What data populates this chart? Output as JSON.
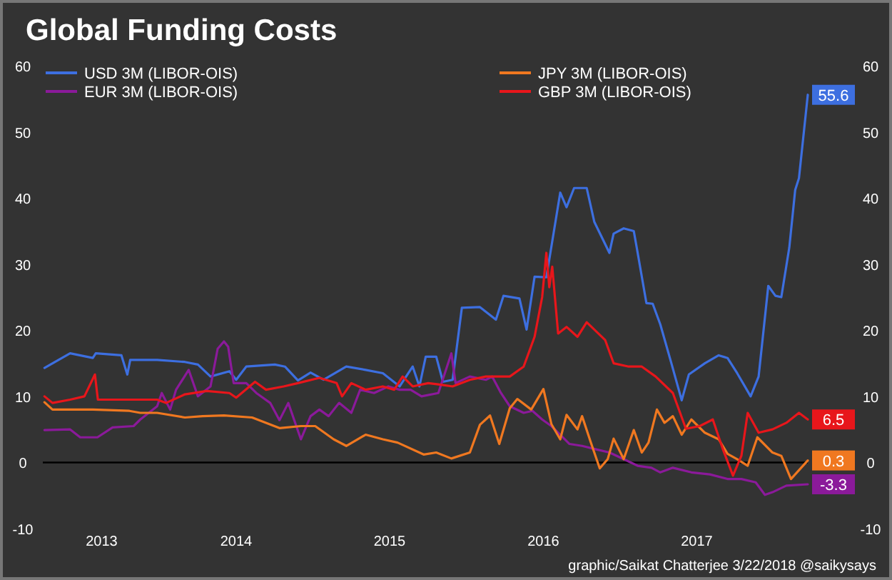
{
  "chart_data": {
    "type": "line",
    "title": "Global Funding Costs",
    "annotations": [
      "graphic/Saikat Chatterjee 3/22/2018 @saikysays"
    ],
    "xlim": [
      "2013-03-28",
      "2018-03-22"
    ],
    "xticks": [
      {
        "value": "2013-08-15",
        "label": "2013"
      },
      {
        "value": "2014-07-01",
        "label": "2014"
      },
      {
        "value": "2015-07-01",
        "label": "2015"
      },
      {
        "value": "2016-07-01",
        "label": "2016"
      },
      {
        "value": "2017-07-01",
        "label": "2017"
      }
    ],
    "ylim": [
      -10,
      60
    ],
    "yticks": [
      -10,
      0,
      10,
      20,
      30,
      40,
      50,
      60
    ],
    "y2lim": [
      -10,
      60
    ],
    "y2ticks": [
      -10,
      0,
      10,
      20,
      30,
      40,
      50,
      60
    ],
    "ref_lines": [
      {
        "axis": "y",
        "value": 0,
        "color": "#000000"
      }
    ],
    "legend": "top",
    "grid": false,
    "marker": "none",
    "line_style": "solid",
    "series": [
      {
        "name": "USD 3M (LIBOR-OIS)",
        "color": "#3d6fe0",
        "x": [
          "2013-04-01",
          "2013-06-01",
          "2013-07-25",
          "2013-08-01",
          "2013-10-01",
          "2013-10-15",
          "2013-10-22",
          "2013-12-25",
          "2014-03-01",
          "2014-04-01",
          "2014-05-01",
          "2014-06-15",
          "2014-07-01",
          "2014-07-25",
          "2014-10-01",
          "2014-10-25",
          "2014-11-25",
          "2014-12-25",
          "2015-01-25",
          "2015-03-20",
          "2015-05-05",
          "2015-06-15",
          "2015-07-25",
          "2015-08-25",
          "2015-09-10",
          "2015-09-25",
          "2015-10-20",
          "2015-11-05",
          "2015-11-28",
          "2015-12-20",
          "2016-02-01",
          "2016-03-10",
          "2016-03-28",
          "2016-05-05",
          "2016-05-22",
          "2016-06-10",
          "2016-07-08",
          "2016-08-10",
          "2016-08-25",
          "2016-09-12",
          "2016-10-12",
          "2016-10-30",
          "2016-12-05",
          "2016-12-15",
          "2017-01-08",
          "2017-02-01",
          "2017-02-08",
          "2017-03-03",
          "2017-03-18",
          "2017-04-05",
          "2017-05-01",
          "2017-05-26",
          "2017-06-12",
          "2017-07-20",
          "2017-08-22",
          "2017-09-12",
          "2017-10-05",
          "2017-11-06",
          "2017-11-25",
          "2017-12-18",
          "2018-01-04",
          "2018-01-18",
          "2018-02-06",
          "2018-02-20",
          "2018-03-01",
          "2018-03-22"
        ],
        "values": [
          14.3,
          16.5,
          15.8,
          16.5,
          16.2,
          13.3,
          15.5,
          15.5,
          15.2,
          14.8,
          13.0,
          13.8,
          12.5,
          14.5,
          14.8,
          14.5,
          12.4,
          13.6,
          12.5,
          14.5,
          14.0,
          13.5,
          11.5,
          14.5,
          11.5,
          16.0,
          16.0,
          12.2,
          12.5,
          23.4,
          23.5,
          21.6,
          25.2,
          24.8,
          20.1,
          28.1,
          28.0,
          40.8,
          38.6,
          41.5,
          41.5,
          36.4,
          31.7,
          34.6,
          35.4,
          35.0,
          32.5,
          24.1,
          24.0,
          20.9,
          15.1,
          9.4,
          13.3,
          15.0,
          16.2,
          15.8,
          13.5,
          10.0,
          13.0,
          26.7,
          25.2,
          25.0,
          32.5,
          41.2,
          43.0,
          55.6
        ],
        "value_labels": [
          null,
          null,
          null,
          null,
          null,
          null,
          null,
          null,
          null,
          null,
          null,
          null,
          null,
          null,
          null,
          null,
          null,
          null,
          null,
          null,
          null,
          null,
          null,
          null,
          null,
          null,
          null,
          null,
          null,
          null,
          null,
          null,
          null,
          null,
          null,
          null,
          null,
          null,
          null,
          null,
          null,
          null,
          null,
          null,
          null,
          null,
          null,
          null,
          null,
          null,
          null,
          null,
          null,
          null,
          null,
          null,
          null,
          null,
          null,
          null,
          null,
          null,
          null,
          null,
          null,
          "55.6"
        ]
      },
      {
        "name": "EUR 3M (LIBOR-OIS)",
        "color": "#8b1a9a",
        "x": [
          "2013-04-01",
          "2013-06-01",
          "2013-06-25",
          "2013-08-05",
          "2013-09-10",
          "2013-10-30",
          "2013-11-15",
          "2013-12-25",
          "2014-01-05",
          "2014-01-25",
          "2014-02-08",
          "2014-03-10",
          "2014-04-01",
          "2014-05-01",
          "2014-05-18",
          "2014-06-02",
          "2014-06-12",
          "2014-06-25",
          "2014-07-25",
          "2014-08-18",
          "2014-09-20",
          "2014-10-12",
          "2014-11-02",
          "2014-12-02",
          "2014-12-25",
          "2015-01-15",
          "2015-02-06",
          "2015-03-03",
          "2015-04-01",
          "2015-04-22",
          "2015-05-25",
          "2015-06-28",
          "2015-07-25",
          "2015-08-20",
          "2015-09-15",
          "2015-10-25",
          "2015-11-25",
          "2015-12-05",
          "2016-01-08",
          "2016-02-15",
          "2016-03-01",
          "2016-03-22",
          "2016-04-12",
          "2016-05-15",
          "2016-06-05",
          "2016-06-28",
          "2016-07-20",
          "2016-08-10",
          "2016-09-01",
          "2016-10-01",
          "2016-11-02",
          "2016-12-05",
          "2017-01-08",
          "2017-02-10",
          "2017-03-15",
          "2017-04-05",
          "2017-05-05",
          "2017-06-18",
          "2017-08-01",
          "2017-09-12",
          "2017-10-15",
          "2017-11-18",
          "2017-12-10",
          "2017-12-28",
          "2018-01-30",
          "2018-03-22"
        ],
        "values": [
          4.9,
          5.0,
          3.8,
          3.8,
          5.3,
          5.5,
          6.5,
          8.5,
          10.5,
          8.0,
          11.0,
          14.0,
          10.0,
          11.5,
          17.2,
          18.3,
          17.5,
          12.0,
          12.0,
          10.5,
          9.0,
          6.4,
          9.0,
          3.5,
          7.0,
          8.0,
          7.0,
          9.0,
          7.5,
          11.0,
          10.5,
          11.5,
          11.0,
          11.0,
          10.0,
          10.5,
          16.5,
          12.0,
          13.0,
          12.5,
          13.0,
          10.5,
          8.5,
          7.5,
          7.8,
          6.5,
          5.5,
          4.2,
          2.8,
          2.5,
          2.0,
          1.5,
          0.5,
          -0.5,
          -0.8,
          -1.5,
          -0.8,
          -1.5,
          -1.8,
          -2.5,
          -2.5,
          -3.0,
          -4.9,
          -4.5,
          -3.5,
          -3.3
        ],
        "value_labels": [
          null,
          null,
          null,
          null,
          null,
          null,
          null,
          null,
          null,
          null,
          null,
          null,
          null,
          null,
          null,
          null,
          null,
          null,
          null,
          null,
          null,
          null,
          null,
          null,
          null,
          null,
          null,
          null,
          null,
          null,
          null,
          null,
          null,
          null,
          null,
          null,
          null,
          null,
          null,
          null,
          null,
          null,
          null,
          null,
          null,
          null,
          null,
          null,
          null,
          null,
          null,
          null,
          null,
          null,
          null,
          null,
          null,
          null,
          null,
          null,
          null,
          null,
          null,
          null,
          null,
          "-3.3"
        ]
      },
      {
        "name": "JPY 3M (LIBOR-OIS)",
        "color": "#f07820",
        "x": [
          "2013-04-01",
          "2013-04-20",
          "2013-07-25",
          "2013-10-20",
          "2013-11-15",
          "2013-12-25",
          "2014-03-01",
          "2014-04-12",
          "2014-06-02",
          "2014-08-08",
          "2014-09-10",
          "2014-10-12",
          "2014-12-02",
          "2015-01-05",
          "2015-02-18",
          "2015-03-20",
          "2015-05-05",
          "2015-06-15",
          "2015-07-20",
          "2015-09-20",
          "2015-10-20",
          "2015-11-25",
          "2016-01-08",
          "2016-02-01",
          "2016-02-25",
          "2016-03-18",
          "2016-04-12",
          "2016-04-30",
          "2016-06-02",
          "2016-07-01",
          "2016-07-20",
          "2016-08-10",
          "2016-08-25",
          "2016-09-20",
          "2016-10-01",
          "2016-10-22",
          "2016-11-12",
          "2016-12-01",
          "2016-12-15",
          "2017-01-08",
          "2017-02-01",
          "2017-02-20",
          "2017-03-08",
          "2017-03-28",
          "2017-04-15",
          "2017-05-05",
          "2017-05-26",
          "2017-06-18",
          "2017-07-20",
          "2017-08-22",
          "2017-09-12",
          "2017-10-05",
          "2017-10-30",
          "2017-11-22",
          "2017-12-28",
          "2018-01-18",
          "2018-02-10",
          "2018-03-22"
        ],
        "values": [
          9.1,
          8.0,
          8.0,
          7.8,
          7.5,
          7.5,
          6.8,
          7.0,
          7.1,
          6.8,
          6.0,
          5.2,
          5.5,
          5.5,
          3.5,
          2.5,
          4.2,
          3.5,
          3.0,
          1.2,
          1.5,
          0.6,
          1.5,
          5.7,
          7.1,
          2.8,
          8.2,
          9.6,
          8.0,
          11.1,
          5.8,
          3.5,
          7.2,
          5.0,
          7.0,
          3.0,
          -0.9,
          0.5,
          3.6,
          0.5,
          4.9,
          1.5,
          3.0,
          8.0,
          6.0,
          7.0,
          4.2,
          6.5,
          4.5,
          3.5,
          1.3,
          0.5,
          -0.5,
          3.8,
          1.5,
          1.0,
          -2.5,
          0.3
        ],
        "value_labels": [
          null,
          null,
          null,
          null,
          null,
          null,
          null,
          null,
          null,
          null,
          null,
          null,
          null,
          null,
          null,
          null,
          null,
          null,
          null,
          null,
          null,
          null,
          null,
          null,
          null,
          null,
          null,
          null,
          null,
          null,
          null,
          null,
          null,
          null,
          null,
          null,
          null,
          null,
          null,
          null,
          null,
          null,
          null,
          null,
          null,
          null,
          null,
          null,
          null,
          null,
          null,
          null,
          null,
          null,
          null,
          null,
          null,
          "0.3"
        ]
      },
      {
        "name": "GBP 3M (LIBOR-OIS)",
        "color": "#e8161b",
        "x": [
          "2013-04-01",
          "2013-04-20",
          "2013-06-01",
          "2013-07-05",
          "2013-07-30",
          "2013-08-06",
          "2013-09-20",
          "2013-10-30",
          "2013-12-25",
          "2014-01-15",
          "2014-03-01",
          "2014-04-22",
          "2014-06-15",
          "2014-07-01",
          "2014-08-15",
          "2014-09-10",
          "2014-10-22",
          "2014-11-25",
          "2015-01-15",
          "2015-02-25",
          "2015-03-10",
          "2015-04-01",
          "2015-05-05",
          "2015-06-15",
          "2015-07-12",
          "2015-08-01",
          "2015-08-25",
          "2015-10-01",
          "2015-10-25",
          "2015-11-28",
          "2016-01-08",
          "2016-02-15",
          "2016-04-12",
          "2016-05-15",
          "2016-06-10",
          "2016-06-28",
          "2016-07-08",
          "2016-07-15",
          "2016-07-22",
          "2016-08-05",
          "2016-08-25",
          "2016-09-20",
          "2016-10-12",
          "2016-11-25",
          "2016-12-15",
          "2017-01-20",
          "2017-02-20",
          "2017-03-25",
          "2017-05-05",
          "2017-06-05",
          "2017-07-08",
          "2017-08-08",
          "2017-09-01",
          "2017-09-25",
          "2017-10-15",
          "2017-10-30",
          "2017-11-25",
          "2017-12-28",
          "2018-01-30",
          "2018-03-01",
          "2018-03-22"
        ],
        "values": [
          10.0,
          9.0,
          9.5,
          10.0,
          13.3,
          9.5,
          9.5,
          9.5,
          9.5,
          9.0,
          10.3,
          10.8,
          10.5,
          9.8,
          12.2,
          11.0,
          11.5,
          12.0,
          12.8,
          12.0,
          10.0,
          12.0,
          11.0,
          11.5,
          11.0,
          13.0,
          11.5,
          12.0,
          11.8,
          11.5,
          12.5,
          13.0,
          13.0,
          14.5,
          19.0,
          25.0,
          31.7,
          26.5,
          29.6,
          19.5,
          20.5,
          19.0,
          21.2,
          18.5,
          15.0,
          14.5,
          14.5,
          13.0,
          10.5,
          5.1,
          5.5,
          6.5,
          2.0,
          -2.0,
          1.0,
          7.5,
          4.5,
          5.0,
          6.0,
          7.5,
          6.5
        ],
        "value_labels": [
          null,
          null,
          null,
          null,
          null,
          null,
          null,
          null,
          null,
          null,
          null,
          null,
          null,
          null,
          null,
          null,
          null,
          null,
          null,
          null,
          null,
          null,
          null,
          null,
          null,
          null,
          null,
          null,
          null,
          null,
          null,
          null,
          null,
          null,
          null,
          null,
          null,
          null,
          null,
          null,
          null,
          null,
          null,
          null,
          null,
          null,
          null,
          null,
          null,
          null,
          null,
          null,
          null,
          null,
          null,
          null,
          null,
          null,
          null,
          null,
          "6.5"
        ]
      }
    ]
  }
}
